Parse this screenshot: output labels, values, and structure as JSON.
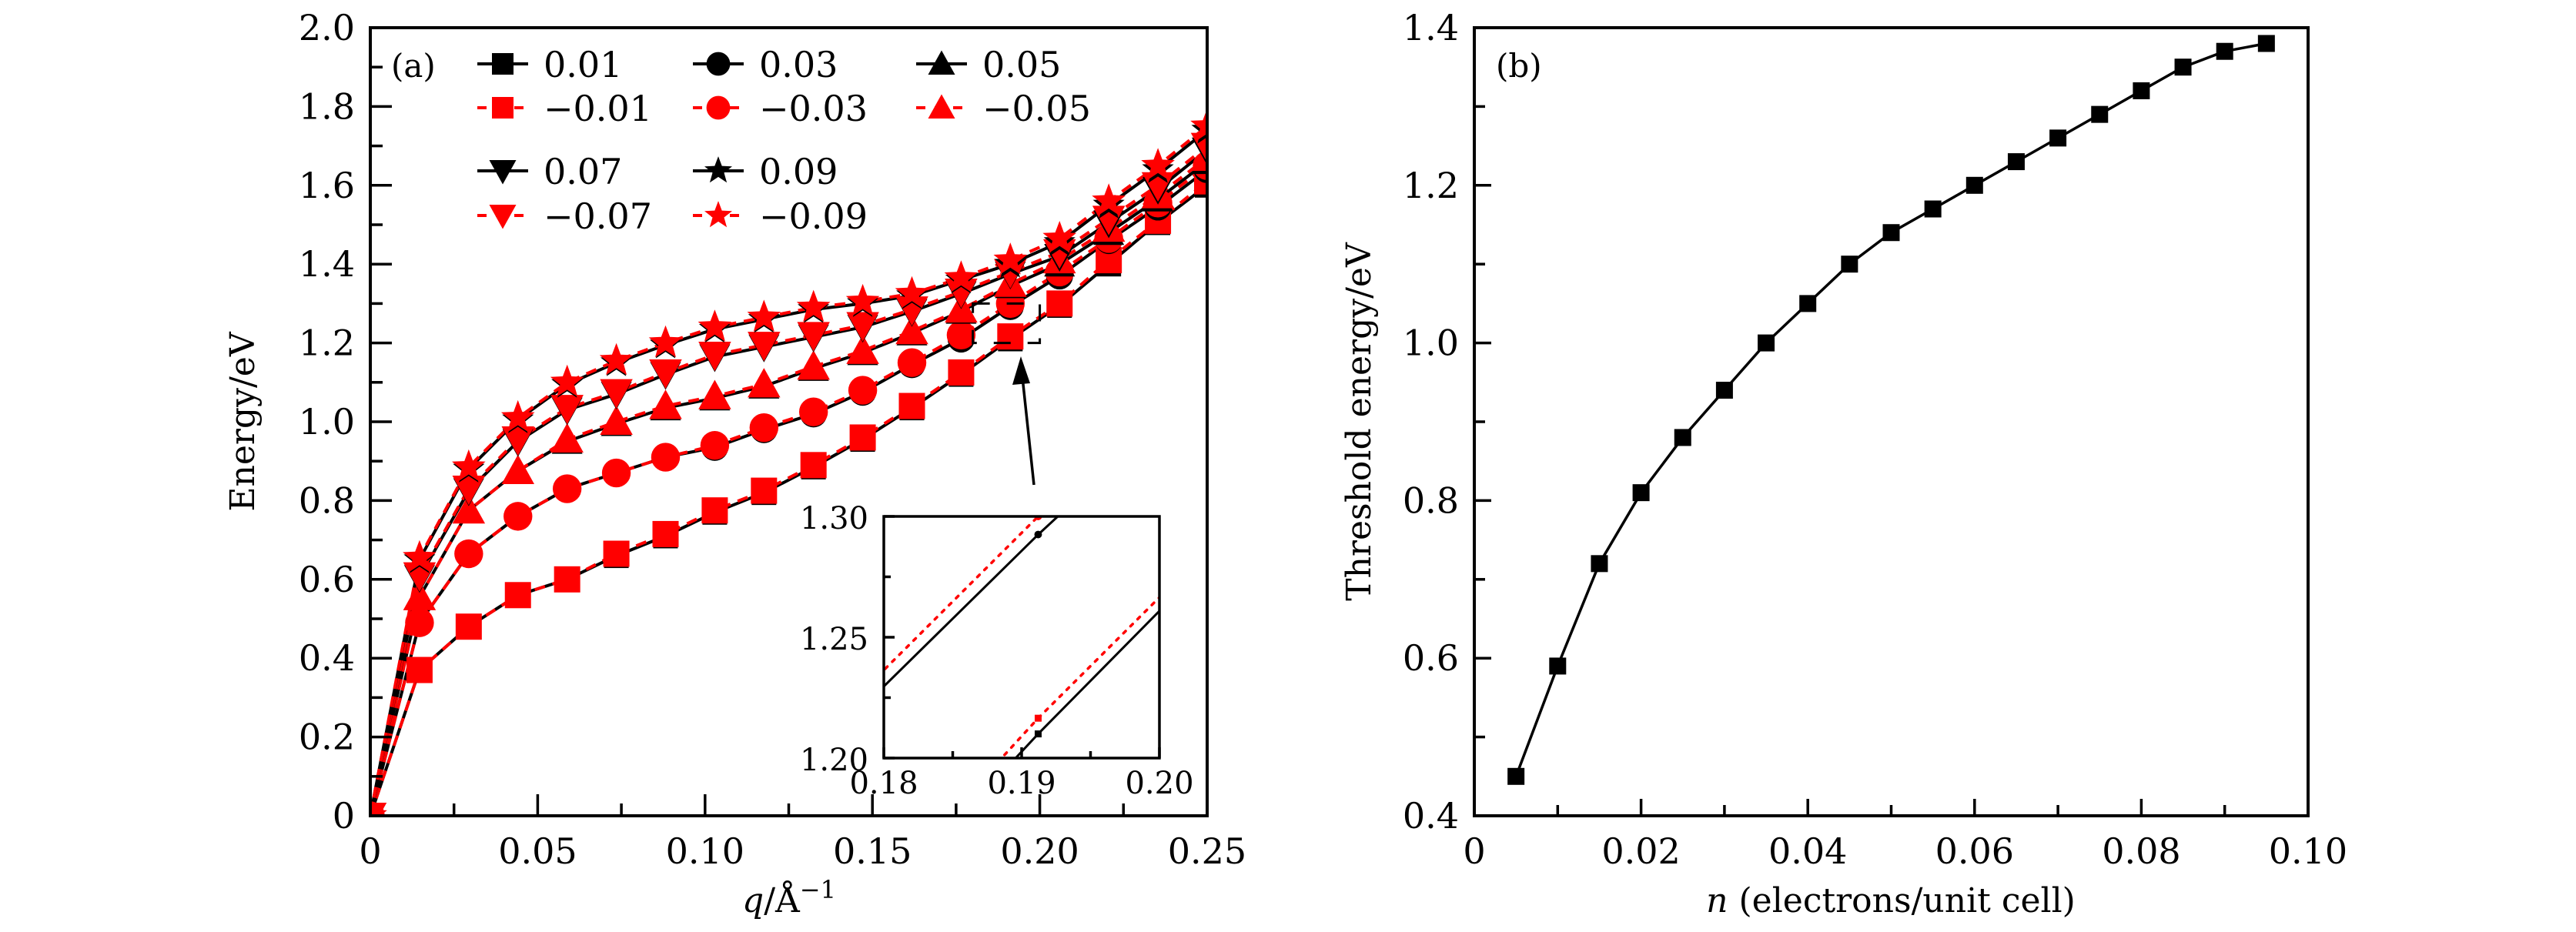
{
  "figure": {
    "panels": [
      "a",
      "b"
    ]
  },
  "chart_data": [
    {
      "type": "line",
      "panel_label": "(a)",
      "title": "",
      "xlabel": "q/Å⁻¹",
      "xlabel_var": "q",
      "xlabel_unit": "/Å",
      "xlabel_sup": "−1",
      "ylabel": "Energy/eV",
      "xlim": [
        0,
        0.25
      ],
      "ylim": [
        0,
        2.0
      ],
      "xticks": [
        0,
        0.05,
        0.1,
        0.15,
        0.2,
        0.25
      ],
      "xtick_labels": [
        "0",
        "0.05",
        "0.10",
        "0.15",
        "0.20",
        "0.25"
      ],
      "xminor": [
        0.025,
        0.075,
        0.125,
        0.175,
        0.225
      ],
      "yticks": [
        0,
        0.2,
        0.4,
        0.6,
        0.8,
        1.0,
        1.2,
        1.4,
        1.6,
        1.8,
        2.0
      ],
      "ytick_labels": [
        "0",
        "0.2",
        "0.4",
        "0.6",
        "0.8",
        "1.0",
        "1.2",
        "1.4",
        "1.6",
        "1.8",
        "2.0"
      ],
      "yminor": [
        0.1,
        0.3,
        0.5,
        0.7,
        0.9,
        1.1,
        1.3,
        1.5,
        1.7,
        1.9
      ],
      "grid": false,
      "legend_placement": "top-left",
      "x": [
        0,
        0.0147,
        0.0294,
        0.0441,
        0.0588,
        0.0735,
        0.0882,
        0.1029,
        0.1176,
        0.1324,
        0.1471,
        0.1618,
        0.1765,
        0.1912,
        0.2059,
        0.2206,
        0.2353,
        0.25
      ],
      "series": [
        {
          "name": "0.01",
          "label": "0.01",
          "marker": "square",
          "color": "#000000",
          "dash": "solid",
          "values": [
            0,
            0.37,
            0.48,
            0.56,
            0.6,
            0.66,
            0.71,
            0.77,
            0.82,
            0.885,
            0.955,
            1.035,
            1.12,
            1.21,
            1.295,
            1.4,
            1.505,
            1.6
          ]
        },
        {
          "name": "-0.01",
          "label": "−0.01",
          "marker": "square",
          "color": "#ff0000",
          "dash": "dashed",
          "values": [
            0,
            0.37,
            0.48,
            0.56,
            0.6,
            0.665,
            0.715,
            0.775,
            0.825,
            0.89,
            0.96,
            1.04,
            1.125,
            1.2165,
            1.3,
            1.41,
            1.51,
            1.61
          ]
        },
        {
          "name": "0.03",
          "label": "0.03",
          "marker": "circle",
          "color": "#000000",
          "dash": "solid",
          "values": [
            0,
            0.49,
            0.665,
            0.76,
            0.83,
            0.87,
            0.91,
            0.935,
            0.98,
            1.02,
            1.075,
            1.145,
            1.21,
            1.2925,
            1.37,
            1.46,
            1.545,
            1.64
          ]
        },
        {
          "name": "-0.03",
          "label": "−0.03",
          "marker": "circle",
          "color": "#ff0000",
          "dash": "dashed",
          "values": [
            0,
            0.49,
            0.665,
            0.76,
            0.83,
            0.87,
            0.91,
            0.94,
            0.985,
            1.025,
            1.08,
            1.15,
            1.22,
            1.3,
            1.38,
            1.465,
            1.555,
            1.65
          ]
        },
        {
          "name": "0.05",
          "label": "0.05",
          "marker": "triangle-up",
          "color": "#000000",
          "dash": "solid",
          "values": [
            0,
            0.555,
            0.775,
            0.875,
            0.95,
            0.995,
            1.035,
            1.06,
            1.09,
            1.135,
            1.175,
            1.225,
            1.28,
            1.345,
            1.4,
            1.48,
            1.565,
            1.66
          ]
        },
        {
          "name": "-0.05",
          "label": "−0.05",
          "marker": "triangle-up",
          "color": "#ff0000",
          "dash": "dashed",
          "values": [
            0,
            0.555,
            0.775,
            0.875,
            0.955,
            1.0,
            1.04,
            1.065,
            1.095,
            1.14,
            1.18,
            1.23,
            1.285,
            1.35,
            1.41,
            1.49,
            1.575,
            1.67
          ]
        },
        {
          "name": "0.07",
          "label": "0.07",
          "marker": "triangle-down",
          "color": "#000000",
          "dash": "solid",
          "values": [
            0,
            0.605,
            0.825,
            0.95,
            1.03,
            1.07,
            1.12,
            1.165,
            1.19,
            1.215,
            1.24,
            1.28,
            1.325,
            1.375,
            1.42,
            1.505,
            1.59,
            1.69
          ]
        },
        {
          "name": "-0.07",
          "label": "−0.07",
          "marker": "triangle-down",
          "color": "#ff0000",
          "dash": "dashed",
          "values": [
            0,
            0.61,
            0.83,
            0.955,
            1.035,
            1.075,
            1.125,
            1.17,
            1.195,
            1.22,
            1.245,
            1.285,
            1.33,
            1.38,
            1.43,
            1.515,
            1.6,
            1.7
          ]
        },
        {
          "name": "0.09",
          "label": "0.09",
          "marker": "star",
          "color": "#000000",
          "dash": "solid",
          "values": [
            0,
            0.65,
            0.88,
            1.005,
            1.095,
            1.15,
            1.195,
            1.235,
            1.26,
            1.285,
            1.3,
            1.32,
            1.36,
            1.4,
            1.455,
            1.55,
            1.64,
            1.74
          ]
        },
        {
          "name": "-0.09",
          "label": "−0.09",
          "marker": "star",
          "color": "#ff0000",
          "dash": "dashed",
          "values": [
            0,
            0.655,
            0.885,
            1.01,
            1.1,
            1.155,
            1.2,
            1.24,
            1.265,
            1.29,
            1.305,
            1.325,
            1.365,
            1.41,
            1.465,
            1.56,
            1.65,
            1.75
          ]
        }
      ],
      "zoom_box": {
        "xlim": [
          0.18,
          0.2
        ],
        "ylim": [
          1.2,
          1.3
        ]
      },
      "inset": {
        "xlim": [
          0.18,
          0.2
        ],
        "ylim": [
          1.2,
          1.3
        ],
        "xticks": [
          0.18,
          0.19,
          0.2
        ],
        "xtick_labels": [
          "0.18",
          "0.19",
          "0.20"
        ],
        "xminor": [
          0.185,
          0.195
        ],
        "yticks": [
          1.2,
          1.25,
          1.3
        ],
        "ytick_labels": [
          "1.20",
          "1.25",
          "1.30"
        ],
        "yminor": [
          1.225,
          1.275
        ],
        "lines": [
          {
            "name": "0.01",
            "color": "#000000",
            "dash": "solid",
            "marker": "square",
            "points": [
              [
                0.1765,
                1.12
              ],
              [
                0.1912,
                1.21
              ],
              [
                0.2059,
                1.295
              ]
            ]
          },
          {
            "name": "-0.01",
            "color": "#ff0000",
            "dash": "dotted",
            "marker": "square",
            "points": [
              [
                0.1765,
                1.125
              ],
              [
                0.1912,
                1.2165
              ],
              [
                0.2059,
                1.3
              ]
            ]
          },
          {
            "name": "0.03",
            "color": "#000000",
            "dash": "solid",
            "marker": "circle",
            "points": [
              [
                0.1765,
                1.21
              ],
              [
                0.1912,
                1.2925
              ],
              [
                0.2059,
                1.37
              ]
            ]
          },
          {
            "name": "-0.03",
            "color": "#ff0000",
            "dash": "dotted",
            "marker": "circle",
            "points": [
              [
                0.1765,
                1.2165
              ],
              [
                0.1912,
                1.3
              ],
              [
                0.2059,
                1.38
              ]
            ]
          }
        ]
      }
    },
    {
      "type": "line",
      "panel_label": "(b)",
      "title": "",
      "xlabel": "n (electrons/unit cell)",
      "xlabel_var": "n",
      "xlabel_rest": " (electrons/unit cell)",
      "ylabel": "Threshold energy/eV",
      "xlim": [
        0,
        0.1
      ],
      "ylim": [
        0.4,
        1.4
      ],
      "xticks": [
        0,
        0.02,
        0.04,
        0.06,
        0.08,
        0.1
      ],
      "xtick_labels": [
        "0",
        "0.02",
        "0.04",
        "0.06",
        "0.08",
        "0.10"
      ],
      "xminor": [
        0.01,
        0.03,
        0.05,
        0.07,
        0.09
      ],
      "yticks": [
        0.4,
        0.6,
        0.8,
        1.0,
        1.2,
        1.4
      ],
      "ytick_labels": [
        "0.4",
        "0.6",
        "0.8",
        "1.0",
        "1.2",
        "1.4"
      ],
      "yminor": [
        0.5,
        0.7,
        0.9,
        1.1,
        1.3
      ],
      "grid": false,
      "legend_placement": "none",
      "x": [
        0.005,
        0.01,
        0.015,
        0.02,
        0.025,
        0.03,
        0.035,
        0.04,
        0.045,
        0.05,
        0.055,
        0.06,
        0.065,
        0.07,
        0.075,
        0.08,
        0.085,
        0.09,
        0.095
      ],
      "series": [
        {
          "name": "threshold",
          "marker": "square",
          "color": "#000000",
          "dash": "solid",
          "values": [
            0.45,
            0.59,
            0.72,
            0.81,
            0.88,
            0.94,
            1.0,
            1.05,
            1.1,
            1.14,
            1.17,
            1.2,
            1.23,
            1.26,
            1.29,
            1.32,
            1.35,
            1.37,
            1.38
          ]
        }
      ]
    }
  ]
}
